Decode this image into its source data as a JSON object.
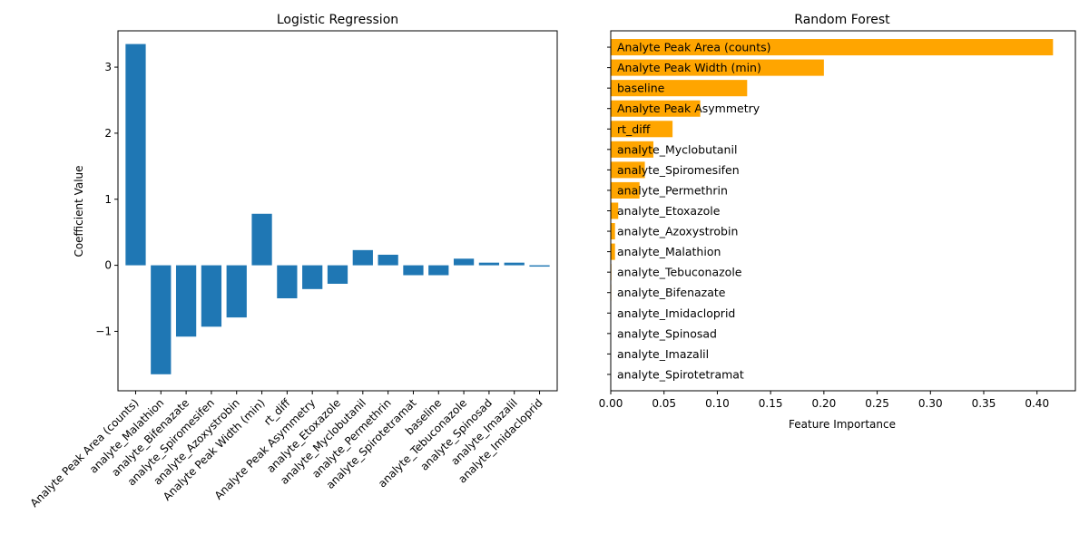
{
  "chart_data": [
    {
      "type": "bar",
      "title": "Logistic Regression",
      "xlabel": "",
      "ylabel": "Coefficient Value",
      "categories": [
        "Analyte Peak Area (counts)",
        "analyte_Malathion",
        "analyte_Bifenazate",
        "analyte_Spiromesifen",
        "analyte_Azoxystrobin",
        "Analyte Peak Width (min)",
        "rt_diff",
        "Analyte Peak Asymmetry",
        "analyte_Etoxazole",
        "analyte_Myclobutanil",
        "analyte_Permethrin",
        "analyte_Spirotetramat",
        "baseline",
        "analyte_Tebuconazole",
        "analyte_Spinosad",
        "analyte_Imazalil",
        "analyte_Imidacloprid"
      ],
      "values": [
        3.35,
        -1.65,
        -1.08,
        -0.93,
        -0.79,
        0.78,
        -0.5,
        -0.36,
        -0.28,
        0.23,
        0.16,
        -0.15,
        -0.15,
        0.1,
        0.04,
        0.04,
        -0.02
      ],
      "ylim": [
        -1.9,
        3.55
      ],
      "yticks": [
        -1,
        0,
        1,
        2,
        3
      ],
      "ytick_labels": [
        "−1",
        "0",
        "1",
        "2",
        "3"
      ],
      "color": "#1f77b4",
      "grid": false
    },
    {
      "type": "barh",
      "title": "Random Forest",
      "xlabel": "Feature Importance",
      "ylabel": "",
      "categories": [
        "Analyte Peak Area (counts)",
        "Analyte Peak Width (min)",
        "baseline",
        "Analyte Peak Asymmetry",
        "rt_diff",
        "analyte_Myclobutanil",
        "analyte_Spiromesifen",
        "analyte_Permethrin",
        "analyte_Etoxazole",
        "analyte_Azoxystrobin",
        "analyte_Malathion",
        "analyte_Tebuconazole",
        "analyte_Bifenazate",
        "analyte_Imidacloprid",
        "analyte_Spinosad",
        "analyte_Imazalil",
        "analyte_Spirotetramat"
      ],
      "values": [
        0.415,
        0.2,
        0.128,
        0.084,
        0.058,
        0.04,
        0.032,
        0.027,
        0.007,
        0.004,
        0.004,
        0.0006,
        0.0005,
        0.0004,
        0.0003,
        0.0002,
        0.0002
      ],
      "xlim": [
        0,
        0.436
      ],
      "xticks": [
        0,
        0.05,
        0.1,
        0.15,
        0.2,
        0.25,
        0.3,
        0.35,
        0.4
      ],
      "xtick_labels": [
        "0.00",
        "0.05",
        "0.10",
        "0.15",
        "0.20",
        "0.25",
        "0.30",
        "0.35",
        "0.40"
      ],
      "color": "#ffa500",
      "grid": false
    }
  ]
}
